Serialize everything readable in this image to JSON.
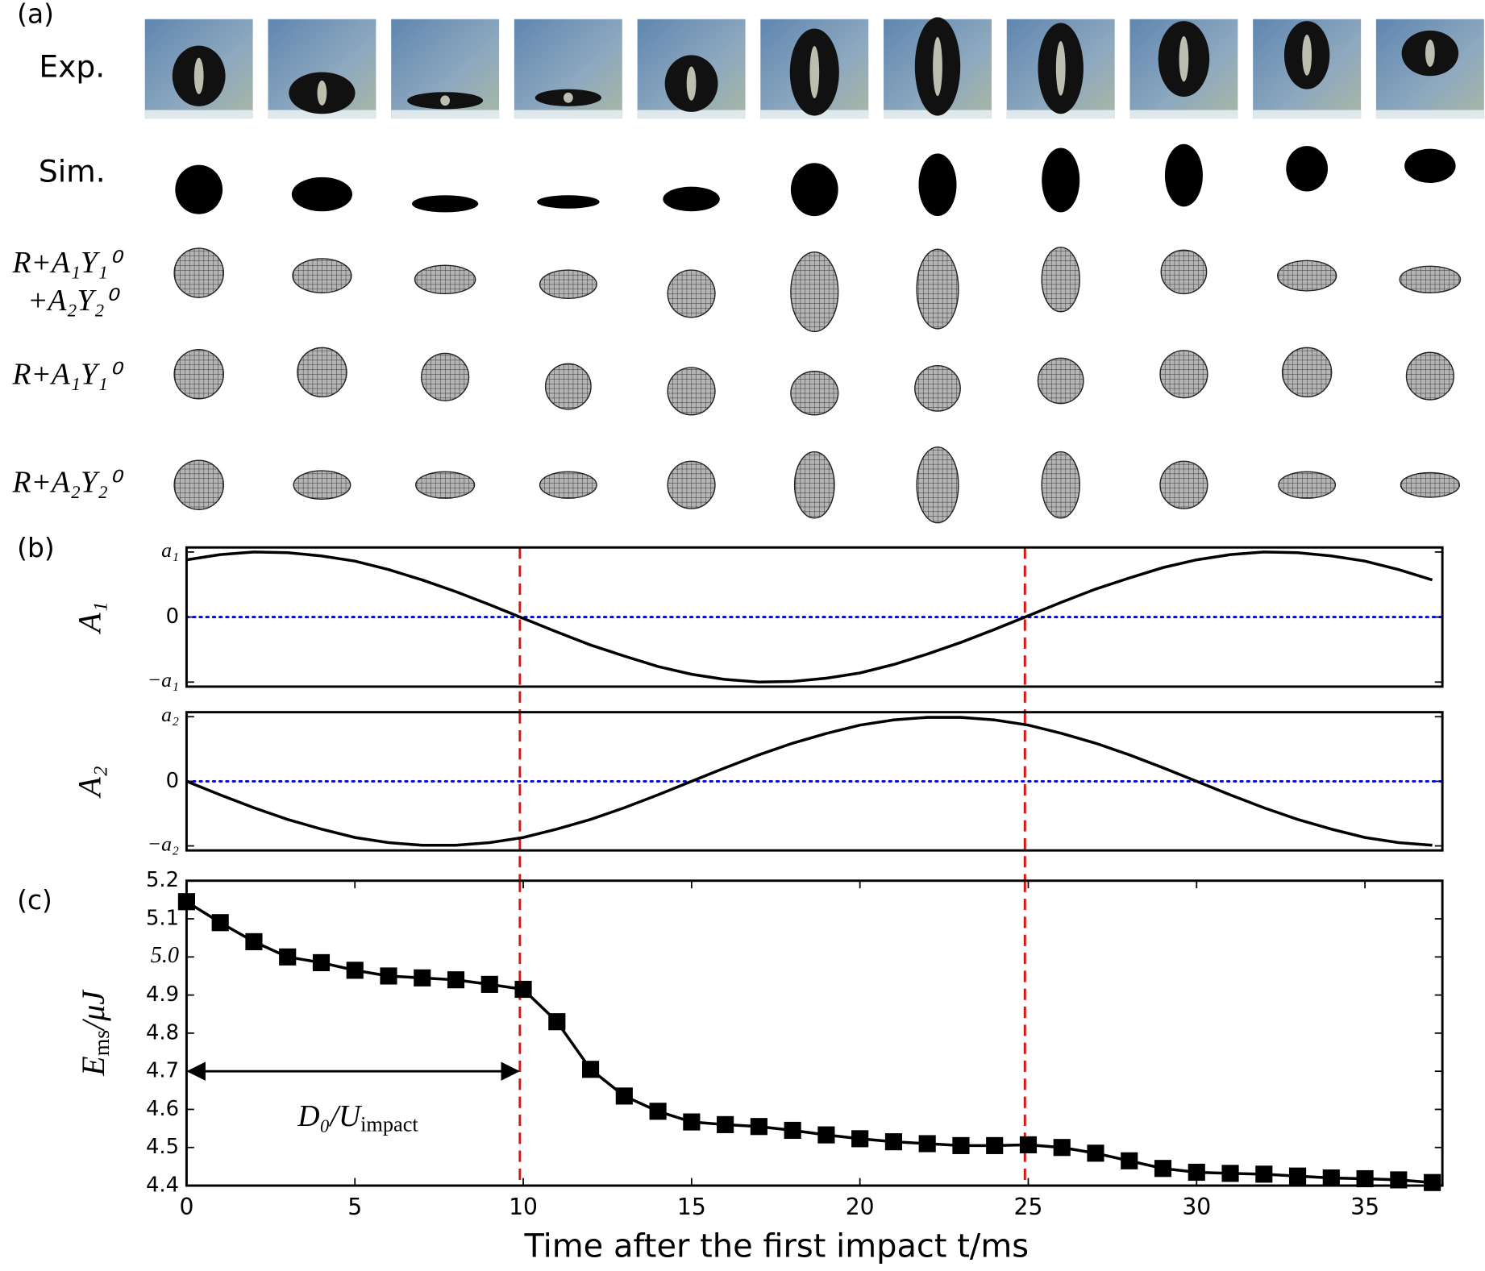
{
  "panel_labels": [
    "(a)",
    "(b)",
    "(c)"
  ],
  "row_labels": [
    "Exp.",
    "Sim.",
    "R+A₁Y₁⁰",
    "+A₂Y₂⁰",
    "R+A₁Y₁⁰",
    "R+A₂Y₂⁰"
  ],
  "chart_data": [
    {
      "type": "line",
      "y_label": "A₁",
      "x": [
        0,
        1,
        2,
        3,
        4,
        5,
        6,
        7,
        8,
        9,
        10,
        11,
        12,
        13,
        14,
        15,
        16,
        17,
        18,
        19,
        20,
        21,
        22,
        23,
        24,
        25,
        26,
        27,
        28,
        29,
        30,
        31,
        32,
        33,
        34,
        35,
        36,
        37
      ],
      "series": [
        {
          "color": "#000000",
          "values": [
            0.88,
            0.96,
            1.0,
            0.99,
            0.94,
            0.86,
            0.73,
            0.57,
            0.39,
            0.19,
            -0.02,
            -0.23,
            -0.43,
            -0.6,
            -0.76,
            -0.88,
            -0.96,
            -1.0,
            -0.99,
            -0.94,
            -0.86,
            -0.73,
            -0.57,
            -0.39,
            -0.19,
            0.02,
            0.23,
            0.43,
            0.6,
            0.76,
            0.88,
            0.96,
            1.0,
            0.99,
            0.94,
            0.86,
            0.73,
            0.57
          ]
        }
      ],
      "xlim": [
        0,
        37.3
      ],
      "ylim": [
        -1.07,
        1.07
      ],
      "yticks": [
        {
          "value": -1,
          "label": "−a₁"
        },
        0,
        {
          "value": 1,
          "label": "a₁"
        }
      ],
      "hline": 0,
      "hline_color": "#0000dd",
      "vlines": [
        9.9,
        24.9
      ],
      "vline_color": "#dd1111"
    },
    {
      "type": "line",
      "y_label": "A₂",
      "x": [
        0,
        1,
        2,
        3,
        4,
        5,
        6,
        7,
        8,
        9,
        10,
        11,
        12,
        13,
        14,
        15,
        16,
        17,
        18,
        19,
        20,
        21,
        22,
        23,
        24,
        25,
        26,
        27,
        28,
        29,
        30,
        31,
        32,
        33,
        34,
        35,
        36,
        37
      ],
      "series": [
        {
          "color": "#000000",
          "values": [
            0,
            -0.21,
            -0.41,
            -0.59,
            -0.74,
            -0.87,
            -0.95,
            -0.99,
            -0.99,
            -0.95,
            -0.87,
            -0.74,
            -0.59,
            -0.41,
            -0.21,
            0,
            0.21,
            0.41,
            0.59,
            0.74,
            0.87,
            0.95,
            0.99,
            0.99,
            0.95,
            0.87,
            0.74,
            0.59,
            0.41,
            0.21,
            0,
            -0.21,
            -0.41,
            -0.59,
            -0.74,
            -0.87,
            -0.95,
            -0.99
          ]
        }
      ],
      "xlim": [
        0,
        37.3
      ],
      "ylim": [
        -1.07,
        1.07
      ],
      "yticks": [
        {
          "value": -1,
          "label": "−a₂"
        },
        0,
        {
          "value": 1,
          "label": "a₂"
        }
      ],
      "hline": 0,
      "hline_color": "#0000dd",
      "vlines": [
        9.9,
        24.9
      ],
      "vline_color": "#dd1111"
    },
    {
      "type": "line",
      "marker": "square",
      "y_label": {
        "text": "E",
        "subscript": "ms",
        "suffix": "/μJ"
      },
      "x_label": "Time after the first impact t/ms",
      "x": [
        0,
        1,
        2,
        3,
        4,
        5,
        6,
        7,
        8,
        9,
        10,
        11,
        12,
        13,
        14,
        15,
        16,
        17,
        18,
        19,
        20,
        21,
        22,
        23,
        24,
        25,
        26,
        27,
        28,
        29,
        30,
        31,
        32,
        33,
        34,
        35,
        36,
        37
      ],
      "series": [
        {
          "color": "#000000",
          "values": [
            5.145,
            5.09,
            5.04,
            5.0,
            4.985,
            4.965,
            4.95,
            4.945,
            4.94,
            4.928,
            4.915,
            4.83,
            4.705,
            4.635,
            4.595,
            4.567,
            4.56,
            4.555,
            4.545,
            4.533,
            4.523,
            4.515,
            4.51,
            4.505,
            4.505,
            4.507,
            4.5,
            4.485,
            4.465,
            4.445,
            4.435,
            4.432,
            4.43,
            4.425,
            4.42,
            4.418,
            4.415,
            4.408
          ]
        }
      ],
      "xlim": [
        0,
        37.3
      ],
      "ylim": [
        4.4,
        5.2
      ],
      "xticks": [
        0,
        5,
        10,
        15,
        20,
        25,
        30,
        35
      ],
      "yticks": [
        4.4,
        4.5,
        4.6,
        4.7,
        4.8,
        4.9,
        {
          "value": 5.0,
          "label": "5.0"
        },
        5.1,
        5.2
      ],
      "vlines": [
        9.9,
        24.9
      ],
      "vline_color": "#dd1111",
      "annotation": {
        "text": "D₀/U",
        "subscript": "impact",
        "x": [
          0,
          9.9
        ],
        "y": 4.7
      }
    }
  ]
}
